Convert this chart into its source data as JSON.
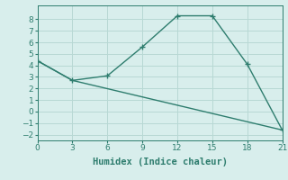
{
  "line1_x": [
    0,
    3,
    6,
    9,
    12,
    15,
    18,
    21
  ],
  "line1_y": [
    4.4,
    2.7,
    3.1,
    5.6,
    8.3,
    8.3,
    4.1,
    -1.6
  ],
  "line2_x": [
    0,
    3,
    21
  ],
  "line2_y": [
    4.4,
    2.7,
    -1.6
  ],
  "color": "#2e7d6e",
  "xlabel": "Humidex (Indice chaleur)",
  "xlim": [
    0,
    21
  ],
  "ylim": [
    -2.5,
    9.2
  ],
  "xticks": [
    0,
    3,
    6,
    9,
    12,
    15,
    18,
    21
  ],
  "yticks": [
    -2,
    -1,
    0,
    1,
    2,
    3,
    4,
    5,
    6,
    7,
    8
  ],
  "bg_color": "#d8eeec",
  "grid_color": "#b8d8d4",
  "marker": "+",
  "markersize": 5,
  "linewidth": 1.0,
  "xlabel_fontsize": 7.5,
  "tick_fontsize": 6.5
}
